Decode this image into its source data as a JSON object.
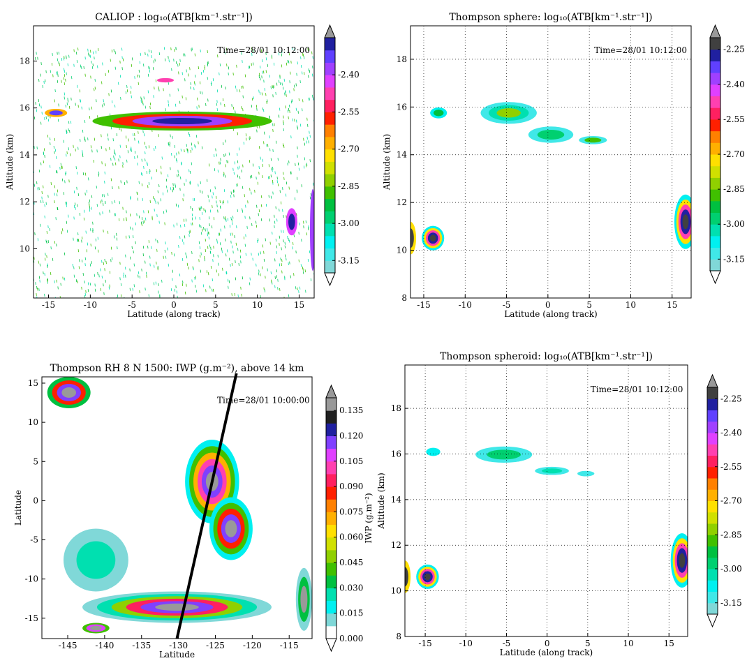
{
  "chart_data": [
    {
      "type": "contour",
      "title": "CALIOP : log₁₀(ATB[km⁻¹.str⁻¹])",
      "xlabel": "Latitude (along track)",
      "ylabel": "Altitude (km)",
      "annotation": "Time=28/01 10:12:00",
      "grid": false,
      "xlim": [
        -16.8,
        16.8
      ],
      "ylim": [
        7.9,
        19.5
      ],
      "xticks": [
        -15,
        -10,
        -5,
        0,
        5,
        10,
        15
      ],
      "yticks": [
        10,
        12,
        14,
        16,
        18
      ],
      "colorbar": {
        "clim": [
          -3.2,
          -2.25
        ],
        "ticks": [
          {
            "value": -2.4,
            "label": "-2.40"
          },
          {
            "value": -2.55,
            "label": "-2.55"
          },
          {
            "value": -2.7,
            "label": "-2.70"
          },
          {
            "value": -2.85,
            "label": "-2.85"
          },
          {
            "value": -3.0,
            "label": "-3.00"
          },
          {
            "value": -3.15,
            "label": "-3.15"
          }
        ],
        "colors": [
          "#80d8d8",
          "#40e8e8",
          "#00f0f0",
          "#00e0b0",
          "#00d070",
          "#00c040",
          "#40c000",
          "#90d000",
          "#d0e000",
          "#ffe000",
          "#ffb000",
          "#ff8000",
          "#ff2000",
          "#ff2060",
          "#ff40b0",
          "#e040ff",
          "#a040ff",
          "#6040ff",
          "#2020a0"
        ],
        "over": "#999999",
        "under": "#ffffff"
      }
    },
    {
      "type": "contour",
      "title": "Thompson sphere: log₁₀(ATB[km⁻¹.str⁻¹])",
      "xlabel": "Latitude (along track)",
      "ylabel": "Altitude (km)",
      "annotation": "Time=28/01 10:12:00",
      "grid": true,
      "xlim": [
        -16.6,
        17.3
      ],
      "ylim": [
        8,
        19.4
      ],
      "xticks": [
        -15,
        -10,
        -5,
        0,
        5,
        10,
        15
      ],
      "yticks": [
        8,
        10,
        12,
        14,
        16,
        18
      ],
      "colorbar": {
        "clim": [
          -3.2,
          -2.2
        ],
        "ticks": [
          {
            "value": -2.25,
            "label": "-2.25"
          },
          {
            "value": -2.4,
            "label": "-2.40"
          },
          {
            "value": -2.55,
            "label": "-2.55"
          },
          {
            "value": -2.7,
            "label": "-2.70"
          },
          {
            "value": -2.85,
            "label": "-2.85"
          },
          {
            "value": -3.0,
            "label": "-3.00"
          },
          {
            "value": -3.15,
            "label": "-3.15"
          }
        ],
        "colors": [
          "#80d8d8",
          "#40e8e8",
          "#00f0f0",
          "#00e0b0",
          "#00d070",
          "#00c040",
          "#40c000",
          "#90d000",
          "#d0e000",
          "#ffe000",
          "#ffb000",
          "#ff8000",
          "#ff2000",
          "#ff2060",
          "#ff40b0",
          "#e040ff",
          "#a040ff",
          "#6040ff",
          "#2020a0",
          "#404040"
        ],
        "over": "#999999",
        "under": "#ffffff"
      }
    },
    {
      "type": "contour",
      "title": "Thompson RH 8 N 1500: IWP (g.m⁻²), above 14 km",
      "xlabel": "Latitude",
      "ylabel": "Latitude",
      "annotation": "Time=28/01 10:00:00",
      "grid": false,
      "colorbar_label": "IWP (g.m⁻²)",
      "xlim": [
        -148.5,
        -111.9
      ],
      "ylim": [
        -17.6,
        15.8
      ],
      "xticks": [
        -145,
        -140,
        -135,
        -130,
        -125,
        -120,
        -115
      ],
      "yticks": [
        -15,
        -10,
        -5,
        0,
        5,
        10,
        15
      ],
      "colorbar": {
        "clim": [
          0,
          0.1425
        ],
        "ticks": [
          {
            "value": 0,
            "label": "0.000"
          },
          {
            "value": 0.015,
            "label": "0.015"
          },
          {
            "value": 0.03,
            "label": "0.030"
          },
          {
            "value": 0.045,
            "label": "0.045"
          },
          {
            "value": 0.06,
            "label": "0.060"
          },
          {
            "value": 0.075,
            "label": "0.075"
          },
          {
            "value": 0.09,
            "label": "0.090"
          },
          {
            "value": 0.105,
            "label": "0.105"
          },
          {
            "value": 0.12,
            "label": "0.120"
          },
          {
            "value": 0.135,
            "label": "0.135"
          }
        ],
        "colors": [
          "#ffffff",
          "#80d8d8",
          "#00f0f0",
          "#00e0b0",
          "#00c040",
          "#40c000",
          "#90d000",
          "#d0e000",
          "#ffe000",
          "#ffb000",
          "#ff8000",
          "#ff2000",
          "#ff2060",
          "#ff40b0",
          "#e040ff",
          "#8040ff",
          "#2020a0",
          "#202020",
          "#999999"
        ],
        "over": "#999999",
        "under": "#ffffff"
      }
    },
    {
      "type": "contour",
      "title": "Thompson spheroid: log₁₀(ATB[km⁻¹.str⁻¹])",
      "xlabel": "Latitude (along track)",
      "ylabel": "Altitude (km)",
      "annotation": "Time=28/01 10:12:00",
      "grid": true,
      "xlim": [
        -17.5,
        17.3
      ],
      "ylim": [
        8,
        19.9
      ],
      "xticks": [
        -15,
        -10,
        -5,
        0,
        5,
        10,
        15
      ],
      "yticks": [
        8,
        10,
        12,
        14,
        16,
        18
      ],
      "colorbar": {
        "clim": [
          -3.2,
          -2.2
        ],
        "ticks": [
          {
            "value": -2.25,
            "label": "-2.25"
          },
          {
            "value": -2.4,
            "label": "-2.40"
          },
          {
            "value": -2.55,
            "label": "-2.55"
          },
          {
            "value": -2.7,
            "label": "-2.70"
          },
          {
            "value": -2.85,
            "label": "-2.85"
          },
          {
            "value": -3.0,
            "label": "-3.00"
          },
          {
            "value": -3.15,
            "label": "-3.15"
          }
        ],
        "colors": [
          "#80d8d8",
          "#40e8e8",
          "#00f0f0",
          "#00e0b0",
          "#00d070",
          "#00c040",
          "#40c000",
          "#90d000",
          "#d0e000",
          "#ffe000",
          "#ffb000",
          "#ff8000",
          "#ff2000",
          "#ff2060",
          "#ff40b0",
          "#e040ff",
          "#a040ff",
          "#6040ff",
          "#2020a0",
          "#404040"
        ],
        "over": "#999999",
        "under": "#ffffff"
      }
    }
  ]
}
